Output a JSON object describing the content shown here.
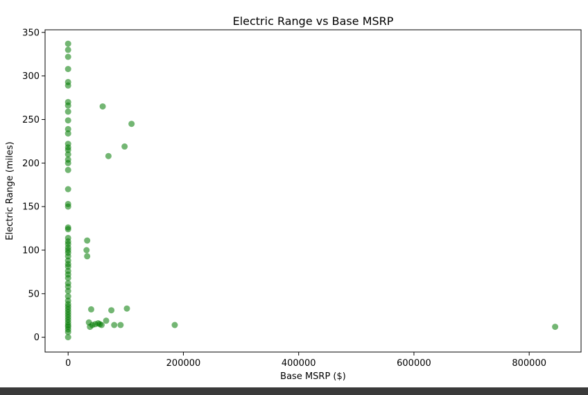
{
  "chart_data": {
    "type": "scatter",
    "title": "Electric Range vs Base MSRP",
    "xlabel": "Base MSRP ($)",
    "ylabel": "Electric Range (miles)",
    "xlim": [
      -40000,
      890000
    ],
    "ylim": [
      -17,
      353
    ],
    "xticks": [
      0,
      200000,
      400000,
      600000,
      800000
    ],
    "xtick_labels": [
      "0",
      "200000",
      "400000",
      "600000",
      "800000"
    ],
    "yticks": [
      0,
      50,
      100,
      150,
      200,
      250,
      300,
      350
    ],
    "ytick_labels": [
      "0",
      "50",
      "100",
      "150",
      "200",
      "250",
      "300",
      "350"
    ],
    "grid": false,
    "marker_color": "#007a00",
    "points": [
      {
        "x": 0,
        "y": 337
      },
      {
        "x": 0,
        "y": 330
      },
      {
        "x": 0,
        "y": 322
      },
      {
        "x": 0,
        "y": 308
      },
      {
        "x": 0,
        "y": 293
      },
      {
        "x": 0,
        "y": 289
      },
      {
        "x": 0,
        "y": 270
      },
      {
        "x": 0,
        "y": 266
      },
      {
        "x": 0,
        "y": 259
      },
      {
        "x": 0,
        "y": 249
      },
      {
        "x": 0,
        "y": 239
      },
      {
        "x": 0,
        "y": 234
      },
      {
        "x": 0,
        "y": 222
      },
      {
        "x": 0,
        "y": 218
      },
      {
        "x": 0,
        "y": 215
      },
      {
        "x": 0,
        "y": 210
      },
      {
        "x": 0,
        "y": 204
      },
      {
        "x": 0,
        "y": 200
      },
      {
        "x": 0,
        "y": 192
      },
      {
        "x": 0,
        "y": 170
      },
      {
        "x": 0,
        "y": 153
      },
      {
        "x": 0,
        "y": 150
      },
      {
        "x": 0,
        "y": 126
      },
      {
        "x": 0,
        "y": 124
      },
      {
        "x": 0,
        "y": 114
      },
      {
        "x": 0,
        "y": 110
      },
      {
        "x": 0,
        "y": 107
      },
      {
        "x": 0,
        "y": 103
      },
      {
        "x": 0,
        "y": 100
      },
      {
        "x": 0,
        "y": 97
      },
      {
        "x": 0,
        "y": 93
      },
      {
        "x": 0,
        "y": 88
      },
      {
        "x": 0,
        "y": 84
      },
      {
        "x": 0,
        "y": 81
      },
      {
        "x": 0,
        "y": 76
      },
      {
        "x": 0,
        "y": 72
      },
      {
        "x": 0,
        "y": 68
      },
      {
        "x": 0,
        "y": 62
      },
      {
        "x": 0,
        "y": 58
      },
      {
        "x": 0,
        "y": 53
      },
      {
        "x": 0,
        "y": 47
      },
      {
        "x": 0,
        "y": 42
      },
      {
        "x": 0,
        "y": 38
      },
      {
        "x": 0,
        "y": 35
      },
      {
        "x": 0,
        "y": 32
      },
      {
        "x": 0,
        "y": 29
      },
      {
        "x": 0,
        "y": 26
      },
      {
        "x": 0,
        "y": 23
      },
      {
        "x": 0,
        "y": 20
      },
      {
        "x": 0,
        "y": 17
      },
      {
        "x": 0,
        "y": 14
      },
      {
        "x": 0,
        "y": 12
      },
      {
        "x": 0,
        "y": 9
      },
      {
        "x": 0,
        "y": 6
      },
      {
        "x": 0,
        "y": 0
      },
      {
        "x": 60000,
        "y": 265
      },
      {
        "x": 110000,
        "y": 245
      },
      {
        "x": 98000,
        "y": 219
      },
      {
        "x": 70000,
        "y": 208
      },
      {
        "x": 33000,
        "y": 111
      },
      {
        "x": 32000,
        "y": 100
      },
      {
        "x": 33000,
        "y": 93
      },
      {
        "x": 40000,
        "y": 32
      },
      {
        "x": 75000,
        "y": 31
      },
      {
        "x": 102000,
        "y": 33
      },
      {
        "x": 36000,
        "y": 17
      },
      {
        "x": 38000,
        "y": 12
      },
      {
        "x": 42000,
        "y": 14
      },
      {
        "x": 47000,
        "y": 15
      },
      {
        "x": 52000,
        "y": 16
      },
      {
        "x": 55000,
        "y": 15
      },
      {
        "x": 58000,
        "y": 14
      },
      {
        "x": 66000,
        "y": 19
      },
      {
        "x": 80000,
        "y": 14
      },
      {
        "x": 91000,
        "y": 14
      },
      {
        "x": 185000,
        "y": 14
      },
      {
        "x": 845000,
        "y": 12
      }
    ]
  }
}
